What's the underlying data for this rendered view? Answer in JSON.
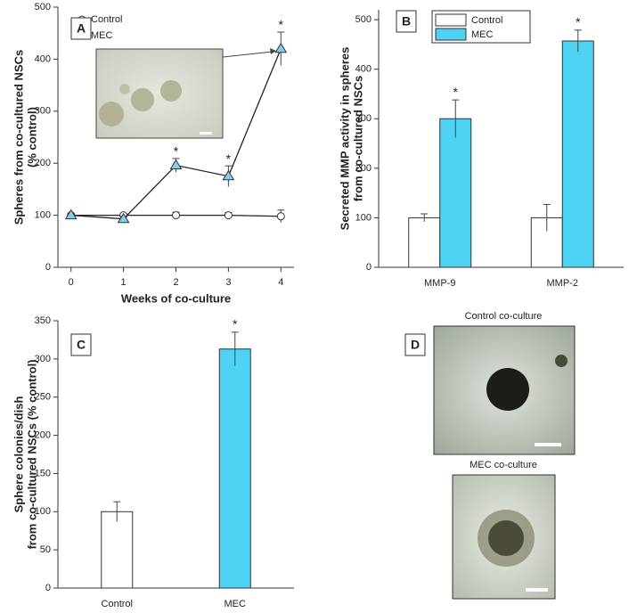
{
  "chart_data": [
    {
      "type": "line",
      "label": "A",
      "xlabel": "Weeks of co-culture",
      "ylabel": [
        "Spheres from co-cultured NSCs",
        "(% control)"
      ],
      "x": [
        0,
        1,
        2,
        3,
        4
      ],
      "xlim": [
        -0.25,
        4.25
      ],
      "xticks": [
        0,
        1,
        2,
        3,
        4
      ],
      "ylim": [
        0,
        500
      ],
      "yticks": [
        0,
        100,
        200,
        300,
        400,
        500
      ],
      "legend": "upper left",
      "series": [
        {
          "name": "Control",
          "color": "#ffffff",
          "marker": "circle",
          "values": [
            100,
            100,
            100,
            100,
            98
          ],
          "errors": [
            3,
            3,
            6,
            5,
            12
          ]
        },
        {
          "name": "MEC",
          "color": "#7fd0e8",
          "marker": "triangle",
          "values": [
            100,
            93,
            196,
            175,
            420
          ],
          "errors": [
            4,
            5,
            13,
            20,
            32
          ],
          "annotations": [
            null,
            null,
            "*",
            "*",
            "*"
          ]
        }
      ]
    },
    {
      "type": "bar",
      "label": "B",
      "ylabel": [
        "Secreted MMP activity in spheres",
        "from co-cultured NSCs"
      ],
      "categories": [
        "MMP-9",
        "MMP-2"
      ],
      "ylim": [
        0,
        520
      ],
      "yticks": [
        0,
        100,
        200,
        300,
        400,
        500
      ],
      "legend": "upper left",
      "series": [
        {
          "name": "Control",
          "color": "#ffffff",
          "values": [
            100,
            100
          ],
          "errors": [
            8,
            27
          ]
        },
        {
          "name": "MEC",
          "color": "#4fd3f5",
          "values": [
            300,
            457
          ],
          "errors": [
            38,
            22
          ],
          "annotations": [
            "*",
            "*"
          ]
        }
      ]
    },
    {
      "type": "bar",
      "label": "C",
      "ylabel": [
        "Sphere colonies/dish",
        "from co-cultured NSCs (% control)"
      ],
      "categories": [
        "Control",
        "MEC"
      ],
      "ylim": [
        0,
        350
      ],
      "yticks": [
        0,
        50,
        100,
        150,
        200,
        250,
        300,
        350
      ],
      "colors": [
        "#ffffff",
        "#4fd3f5"
      ],
      "values": [
        100,
        313
      ],
      "errors": [
        13,
        22
      ],
      "annotations": [
        null,
        "*"
      ]
    },
    {
      "type": "image",
      "label": "D",
      "captions": [
        "Control co-culture",
        "MEC co-culture"
      ]
    }
  ]
}
